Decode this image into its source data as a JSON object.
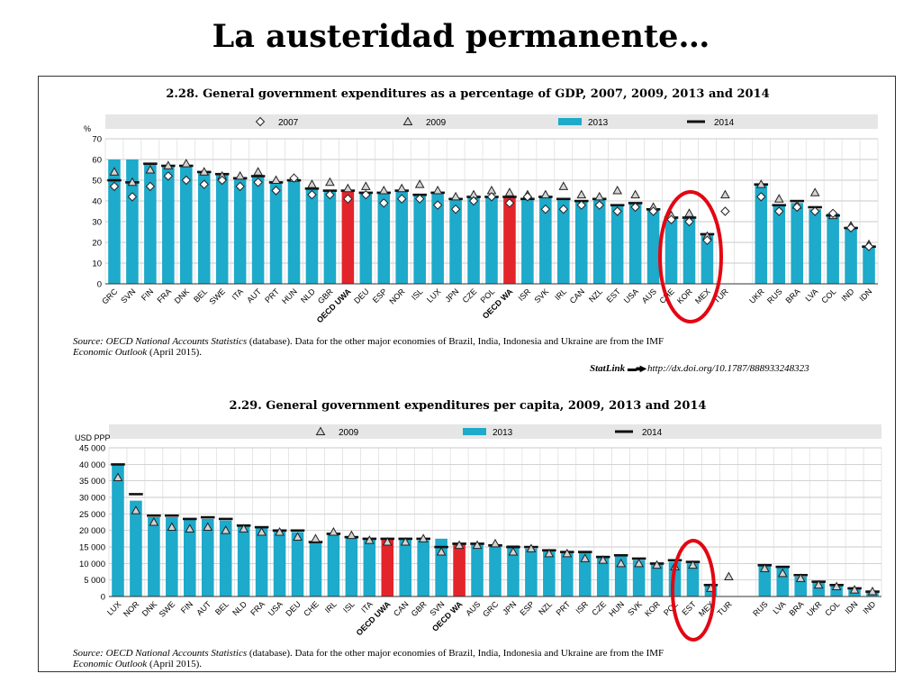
{
  "slide": {
    "title": "La austeridad permanente…"
  },
  "colors": {
    "bar": "#1eaaca",
    "highlight": "#e3242b",
    "legend_band": "#e6e6e6",
    "circle": "#e30613"
  },
  "chart_data": [
    {
      "type": "bar",
      "title": "2.28. General government expenditures as a percentage of GDP, 2007, 2009, 2013 and 2014",
      "ylabel": "%",
      "ylim": [
        0,
        70
      ],
      "yticks": [
        0,
        10,
        20,
        30,
        40,
        50,
        60,
        70
      ],
      "grid": true,
      "legend": [
        "2007",
        "2009",
        "2013",
        "2014"
      ],
      "categories": [
        "GRC",
        "SVN",
        "FIN",
        "FRA",
        "DNK",
        "BEL",
        "SWE",
        "ITA",
        "AUT",
        "PRT",
        "HUN",
        "NLD",
        "GBR",
        "OECD UWA",
        "DEU",
        "ESP",
        "NOR",
        "ISL",
        "LUX",
        "JPN",
        "CZE",
        "POL",
        "OECD WA",
        "ISR",
        "SVK",
        "IRL",
        "CAN",
        "NZL",
        "EST",
        "USA",
        "AUS",
        "CHE",
        "KOR",
        "MEX",
        "TUR",
        "",
        "UKR",
        "RUS",
        "BRA",
        "LVA",
        "COL",
        "IND",
        "IDN"
      ],
      "bold_categories": [
        "OECD UWA",
        "OECD WA"
      ],
      "highlight_categories": [
        "OECD UWA",
        "OECD WA"
      ],
      "series": [
        {
          "name": "2013",
          "values": [
            60,
            60,
            58,
            57,
            57,
            54,
            53,
            51,
            52,
            49,
            50,
            46,
            45,
            45,
            44,
            44,
            45,
            43,
            44,
            41,
            42,
            42,
            42,
            41,
            42,
            41,
            40,
            41,
            38,
            39,
            36,
            32,
            32,
            24,
            null,
            null,
            48,
            38,
            39,
            36,
            34,
            27,
            18
          ]
        },
        {
          "name": "2014",
          "values": [
            50,
            49,
            58,
            57,
            57,
            54,
            53,
            51,
            52,
            49,
            50,
            46,
            45,
            45,
            44,
            44,
            45,
            43,
            44,
            41,
            42,
            42,
            42,
            41,
            42,
            41,
            40,
            41,
            38,
            39,
            36,
            32,
            32,
            24,
            null,
            null,
            48,
            38,
            40,
            37,
            33,
            27,
            18
          ]
        },
        {
          "name": "2009",
          "values": [
            54,
            49,
            55,
            57,
            58,
            54,
            52,
            52,
            54,
            50,
            51,
            48,
            49,
            46,
            47,
            45,
            46,
            48,
            45,
            42,
            43,
            45,
            44,
            43,
            43,
            47,
            43,
            42,
            45,
            43,
            37,
            33,
            34,
            23,
            43,
            null,
            48,
            41,
            38,
            44,
            33,
            28,
            19
          ]
        },
        {
          "name": "2007",
          "values": [
            47,
            42,
            47,
            52,
            50,
            48,
            50,
            47,
            49,
            45,
            51,
            43,
            43,
            41,
            43,
            39,
            41,
            41,
            38,
            36,
            40,
            42,
            39,
            42,
            36,
            36,
            38,
            38,
            35,
            37,
            35,
            31,
            30,
            21,
            35,
            null,
            42,
            35,
            37,
            35,
            34,
            27,
            18
          ]
        }
      ],
      "source_label": "Source:",
      "source_db": "OECD National Accounts Statistics",
      "source_text": "(database). Data for the other major economies of Brazil, India, Indonesia and Ukraine are from the IMF",
      "source_pub": "Economic Outlook",
      "source_date": "(April 2015).",
      "statlink_label": "StatLink",
      "statlink_url": "http://dx.doi.org/10.1787/888933248323"
    },
    {
      "type": "bar",
      "title": "2.29. General government expenditures per capita, 2009, 2013 and 2014",
      "ylabel": "USD PPP",
      "ylim": [
        0,
        45000
      ],
      "yticks": [
        "0",
        "5 000",
        "10 000",
        "15 000",
        "20 000",
        "25 000",
        "30 000",
        "35 000",
        "40 000",
        "45 000"
      ],
      "grid": true,
      "legend": [
        "2009",
        "2013",
        "2014"
      ],
      "categories": [
        "LUX",
        "NOR",
        "DNK",
        "SWE",
        "FIN",
        "AUT",
        "BEL",
        "NLD",
        "FRA",
        "USA",
        "DEU",
        "CHE",
        "IRL",
        "ISL",
        "ITA",
        "OECD UWA",
        "CAN",
        "GBR",
        "SVN",
        "OECD WA",
        "AUS",
        "GRC",
        "JPN",
        "ESP",
        "NZL",
        "PRT",
        "ISR",
        "CZE",
        "HUN",
        "SVK",
        "KOR",
        "POL",
        "EST",
        "MEX",
        "TUR",
        "",
        "RUS",
        "LVA",
        "BRA",
        "UKR",
        "COL",
        "IDN",
        "IND"
      ],
      "bold_categories": [
        "OECD UWA",
        "OECD WA"
      ],
      "highlight_categories": [
        "OECD UWA",
        "OECD WA"
      ],
      "series": [
        {
          "name": "2013",
          "values": [
            40000,
            29000,
            24000,
            24000,
            23500,
            23500,
            23000,
            21500,
            21000,
            20000,
            19500,
            16500,
            19000,
            18000,
            17500,
            17500,
            17500,
            17000,
            17500,
            16000,
            16000,
            15500,
            15500,
            14500,
            14000,
            13500,
            13500,
            12000,
            12500,
            11000,
            10000,
            10500,
            10500,
            3500,
            null,
            null,
            9500,
            9000,
            6000,
            4500,
            3500,
            2500,
            1500
          ]
        },
        {
          "name": "2014",
          "values": [
            40000,
            31000,
            24500,
            24500,
            23500,
            24000,
            23500,
            21500,
            21000,
            20000,
            20000,
            16500,
            19000,
            18000,
            17500,
            17500,
            17500,
            17500,
            15000,
            16000,
            16000,
            15500,
            15000,
            15000,
            14000,
            13500,
            13500,
            12000,
            12500,
            11500,
            10000,
            11000,
            10500,
            3500,
            null,
            null,
            9500,
            9000,
            6500,
            4500,
            3500,
            2500,
            1500
          ]
        },
        {
          "name": "2009",
          "values": [
            36000,
            26000,
            22500,
            21000,
            20500,
            21000,
            20000,
            20500,
            19500,
            19500,
            18000,
            17500,
            19500,
            18500,
            17000,
            16500,
            16500,
            17500,
            13500,
            15500,
            15500,
            16000,
            13500,
            14500,
            13000,
            13000,
            11500,
            11000,
            10000,
            10000,
            9500,
            9000,
            9500,
            2500,
            6000,
            null,
            8500,
            7000,
            5500,
            3500,
            3000,
            2000,
            1500
          ]
        }
      ],
      "source_label": "Source:",
      "source_db": "OECD National Accounts Statistics",
      "source_text": "(database). Data for the other major economies of Brazil, India, Indonesia and Ukraine are from the IMF",
      "source_pub": "Economic Outlook",
      "source_date": "(April 2015)."
    }
  ]
}
